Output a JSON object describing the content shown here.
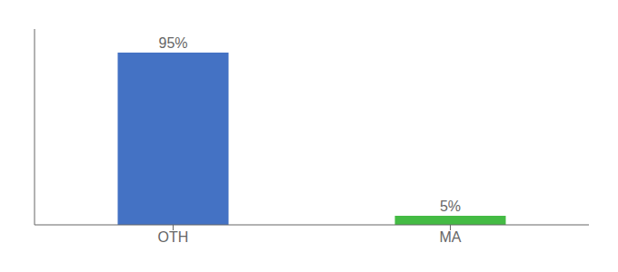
{
  "chart_data": {
    "type": "bar",
    "categories": [
      "OTH",
      "MA"
    ],
    "values": [
      95,
      5
    ],
    "value_labels": [
      "95%",
      "5%"
    ],
    "colors": [
      "#4472c4",
      "#44bb44"
    ],
    "ylim": [
      0,
      108
    ],
    "data_labels": true,
    "tick_labels": "x"
  }
}
